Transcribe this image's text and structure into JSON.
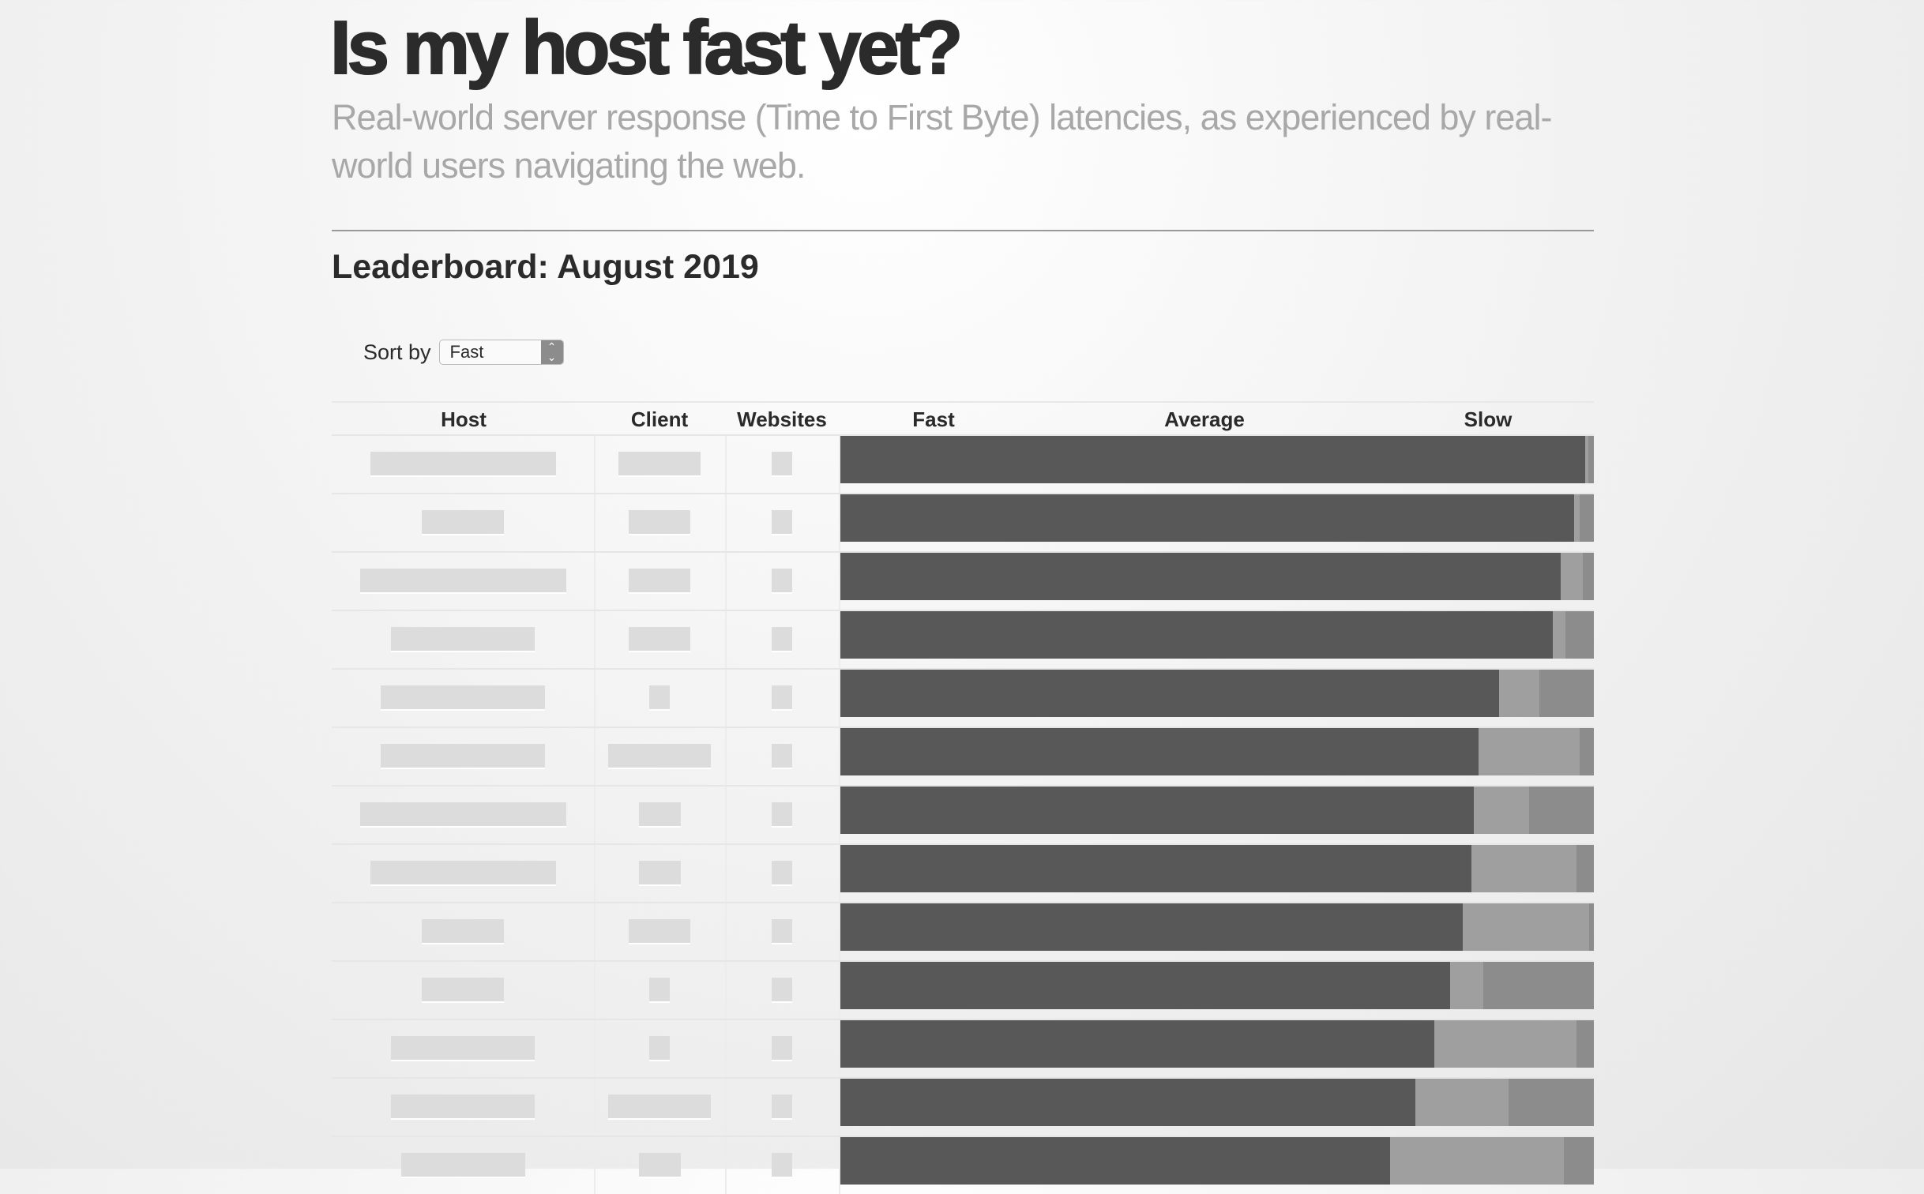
{
  "header": {
    "title": "Is my host fast yet?",
    "subtitle": "Real-world server response (Time to First Byte) latencies, as experienced by real-world users navigating the web."
  },
  "leaderboard": {
    "heading": "Leaderboard: August 2019",
    "sort_label": "Sort by",
    "sort_value": "Fast",
    "columns": [
      "Host",
      "Client",
      "Websites",
      "Fast",
      "Average",
      "Slow"
    ]
  },
  "colors": {
    "fast": "#585858",
    "average": "#9f9f9f",
    "slow": "#8c8c8c",
    "skeleton": "#dcdcdc"
  },
  "chart_data": {
    "type": "bar",
    "stacked": true,
    "orientation": "horizontal",
    "series": [
      {
        "name": "Fast",
        "values": [
          0.988,
          0.974,
          0.956,
          0.946,
          0.874,
          0.847,
          0.841,
          0.838,
          0.826,
          0.809,
          0.788,
          0.763,
          0.73
        ]
      },
      {
        "name": "Average",
        "values": [
          0.005,
          0.007,
          0.029,
          0.016,
          0.054,
          0.134,
          0.073,
          0.139,
          0.168,
          0.044,
          0.189,
          0.124,
          0.23
        ]
      },
      {
        "name": "Slow",
        "values": [
          0.007,
          0.019,
          0.015,
          0.038,
          0.072,
          0.019,
          0.086,
          0.023,
          0.006,
          0.147,
          0.023,
          0.113,
          0.04
        ]
      }
    ],
    "xlim": [
      0,
      1
    ]
  }
}
